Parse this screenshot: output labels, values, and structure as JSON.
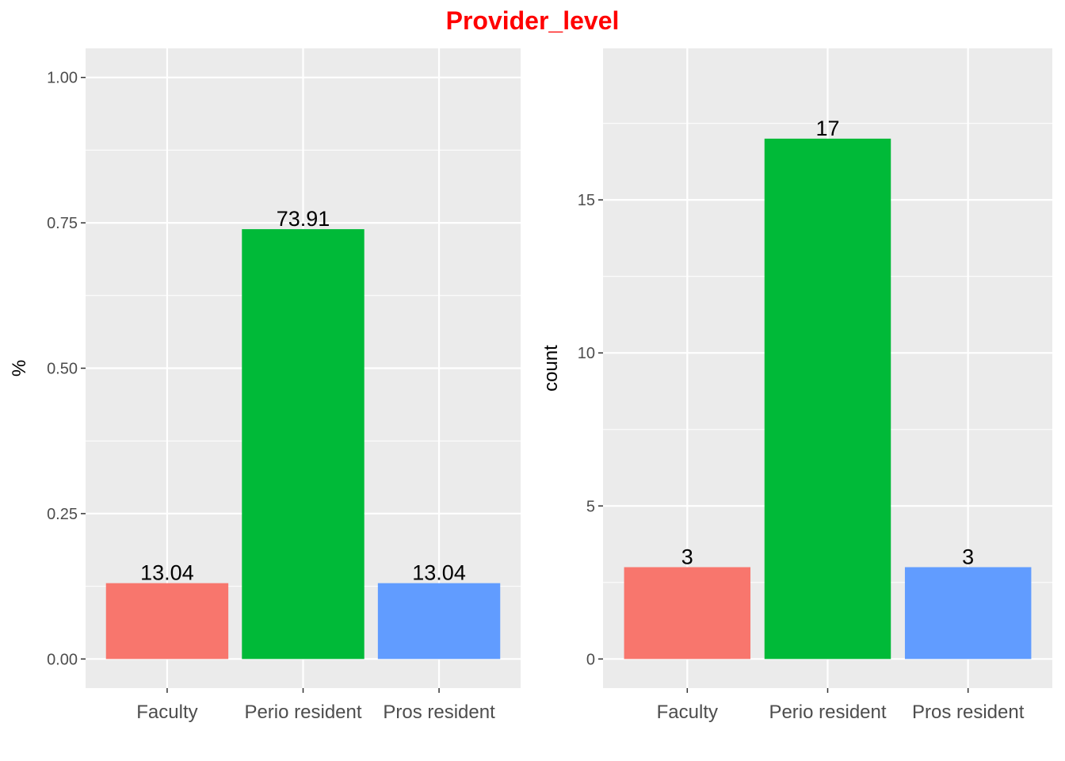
{
  "title": "Provider_level",
  "colors": {
    "panel_bg": "#ebebeb",
    "grid_major": "#ffffff",
    "title": "#ff0000",
    "bars": [
      "#f8766d",
      "#00ba38",
      "#619cff"
    ]
  },
  "chart_data": [
    {
      "type": "bar",
      "categories": [
        "Faculty",
        "Perio resident",
        "Pros resident"
      ],
      "values": [
        0.1304,
        0.7391,
        0.1304
      ],
      "data_labels": [
        "13.04",
        "73.91",
        "13.04"
      ],
      "xlabel": "",
      "ylabel": "%",
      "ylim": [
        -0.05,
        1.05
      ],
      "yticks": [
        0,
        0.25,
        0.5,
        0.75,
        1
      ],
      "ytick_labels": [
        "0.00",
        "0.25",
        "0.50",
        "0.75",
        "1.00"
      ],
      "grid": true,
      "legend": "none"
    },
    {
      "type": "bar",
      "categories": [
        "Faculty",
        "Perio resident",
        "Pros resident"
      ],
      "values": [
        3,
        17,
        3
      ],
      "data_labels": [
        "3",
        "17",
        "3"
      ],
      "xlabel": "",
      "ylabel": "count",
      "ylim": [
        -0.95,
        19.95
      ],
      "yticks": [
        0,
        5,
        10,
        15
      ],
      "ytick_labels": [
        "0",
        "5",
        "10",
        "15"
      ],
      "grid": true,
      "legend": "none"
    }
  ]
}
